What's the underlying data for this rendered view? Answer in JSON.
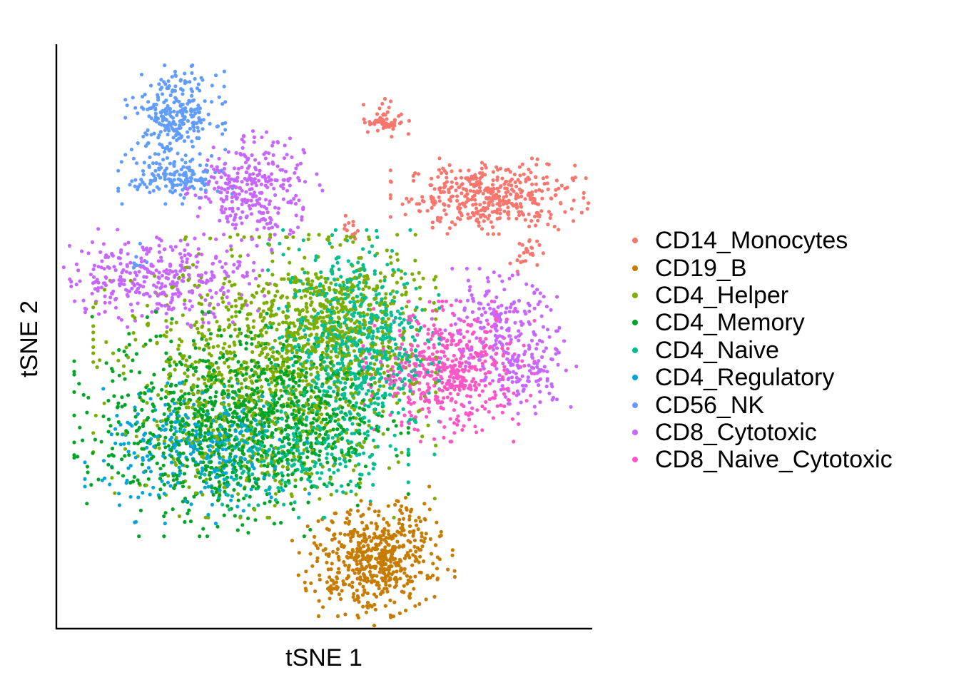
{
  "chart_data": {
    "type": "scatter",
    "title": "",
    "xlabel": "tSNE 1",
    "ylabel": "tSNE 2",
    "xlim": [
      -45,
      45
    ],
    "ylim": [
      -45,
      55
    ],
    "ticks_shown": false,
    "grid": false,
    "legend_position": "right",
    "point_size": 2,
    "series": [
      {
        "name": "CD14_Monocytes",
        "color": "#F8766D",
        "clusters": [
          {
            "cx": 28,
            "cy": 29,
            "sx": 7.0,
            "sy": 2.7,
            "n": 420
          },
          {
            "cx": 10,
            "cy": 42,
            "sx": 2.0,
            "sy": 1.4,
            "n": 60,
            "tilt": -0.6
          },
          {
            "cx": 34,
            "cy": 19,
            "sx": 1.2,
            "sy": 1.2,
            "n": 25
          },
          {
            "cx": 4.5,
            "cy": 23,
            "sx": 0.5,
            "sy": 1.2,
            "n": 12
          }
        ]
      },
      {
        "name": "CD19_B",
        "color": "#C77C00",
        "clusters": [
          {
            "cx": 9,
            "cy": -33,
            "sx": 5.5,
            "sy": 4.2,
            "n": 560,
            "tilt": 0.45
          }
        ]
      },
      {
        "name": "CD4_Helper",
        "color": "#7CAE00",
        "clusters": [
          {
            "cx": -10,
            "cy": -2,
            "sx": 12,
            "sy": 10,
            "n": 900
          },
          {
            "cx": 2,
            "cy": 8,
            "sx": 7,
            "sy": 6,
            "n": 450
          }
        ]
      },
      {
        "name": "CD4_Memory",
        "color": "#00A426",
        "clusters": [
          {
            "cx": -18,
            "cy": -10,
            "sx": 10,
            "sy": 8,
            "n": 750
          },
          {
            "cx": -5,
            "cy": -9,
            "sx": 8,
            "sy": 6,
            "n": 350
          }
        ]
      },
      {
        "name": "CD4_Naive",
        "color": "#00BF92",
        "clusters": [
          {
            "cx": 5,
            "cy": 4,
            "sx": 6,
            "sy": 8,
            "n": 650
          },
          {
            "cx": -5,
            "cy": -14,
            "sx": 8,
            "sy": 5,
            "n": 250
          }
        ]
      },
      {
        "name": "CD4_Regulatory",
        "color": "#00A6D9",
        "clusters": [
          {
            "cx": -21,
            "cy": -15,
            "sx": 8,
            "sy": 5,
            "n": 300
          }
        ]
      },
      {
        "name": "CD56_NK",
        "color": "#619CFF",
        "clusters": [
          {
            "cx": -25,
            "cy": 43,
            "sx": 3.5,
            "sy": 3.5,
            "n": 270
          },
          {
            "cx": -25,
            "cy": 32,
            "sx": 4.0,
            "sy": 1.8,
            "n": 150
          },
          {
            "cx": -31,
            "cy": 18,
            "sx": 0.5,
            "sy": 1.2,
            "n": 10
          }
        ]
      },
      {
        "name": "CD8_Cytotoxic",
        "color": "#C867FF",
        "clusters": [
          {
            "cx": -12,
            "cy": 30,
            "sx": 4.5,
            "sy": 4.0,
            "n": 300,
            "tilt": 0.5
          },
          {
            "cx": -28,
            "cy": 15,
            "sx": 8.0,
            "sy": 3.5,
            "n": 350
          },
          {
            "cx": 29,
            "cy": 7,
            "sx": 5.0,
            "sy": 4.0,
            "n": 180
          },
          {
            "cx": 34,
            "cy": -1,
            "sx": 4.0,
            "sy": 3.0,
            "n": 120
          }
        ]
      },
      {
        "name": "CD8_Naive_Cytotoxic",
        "color": "#FF56C6",
        "clusters": [
          {
            "cx": 21,
            "cy": -1,
            "sx": 6.0,
            "sy": 5.0,
            "n": 500
          }
        ]
      }
    ]
  }
}
